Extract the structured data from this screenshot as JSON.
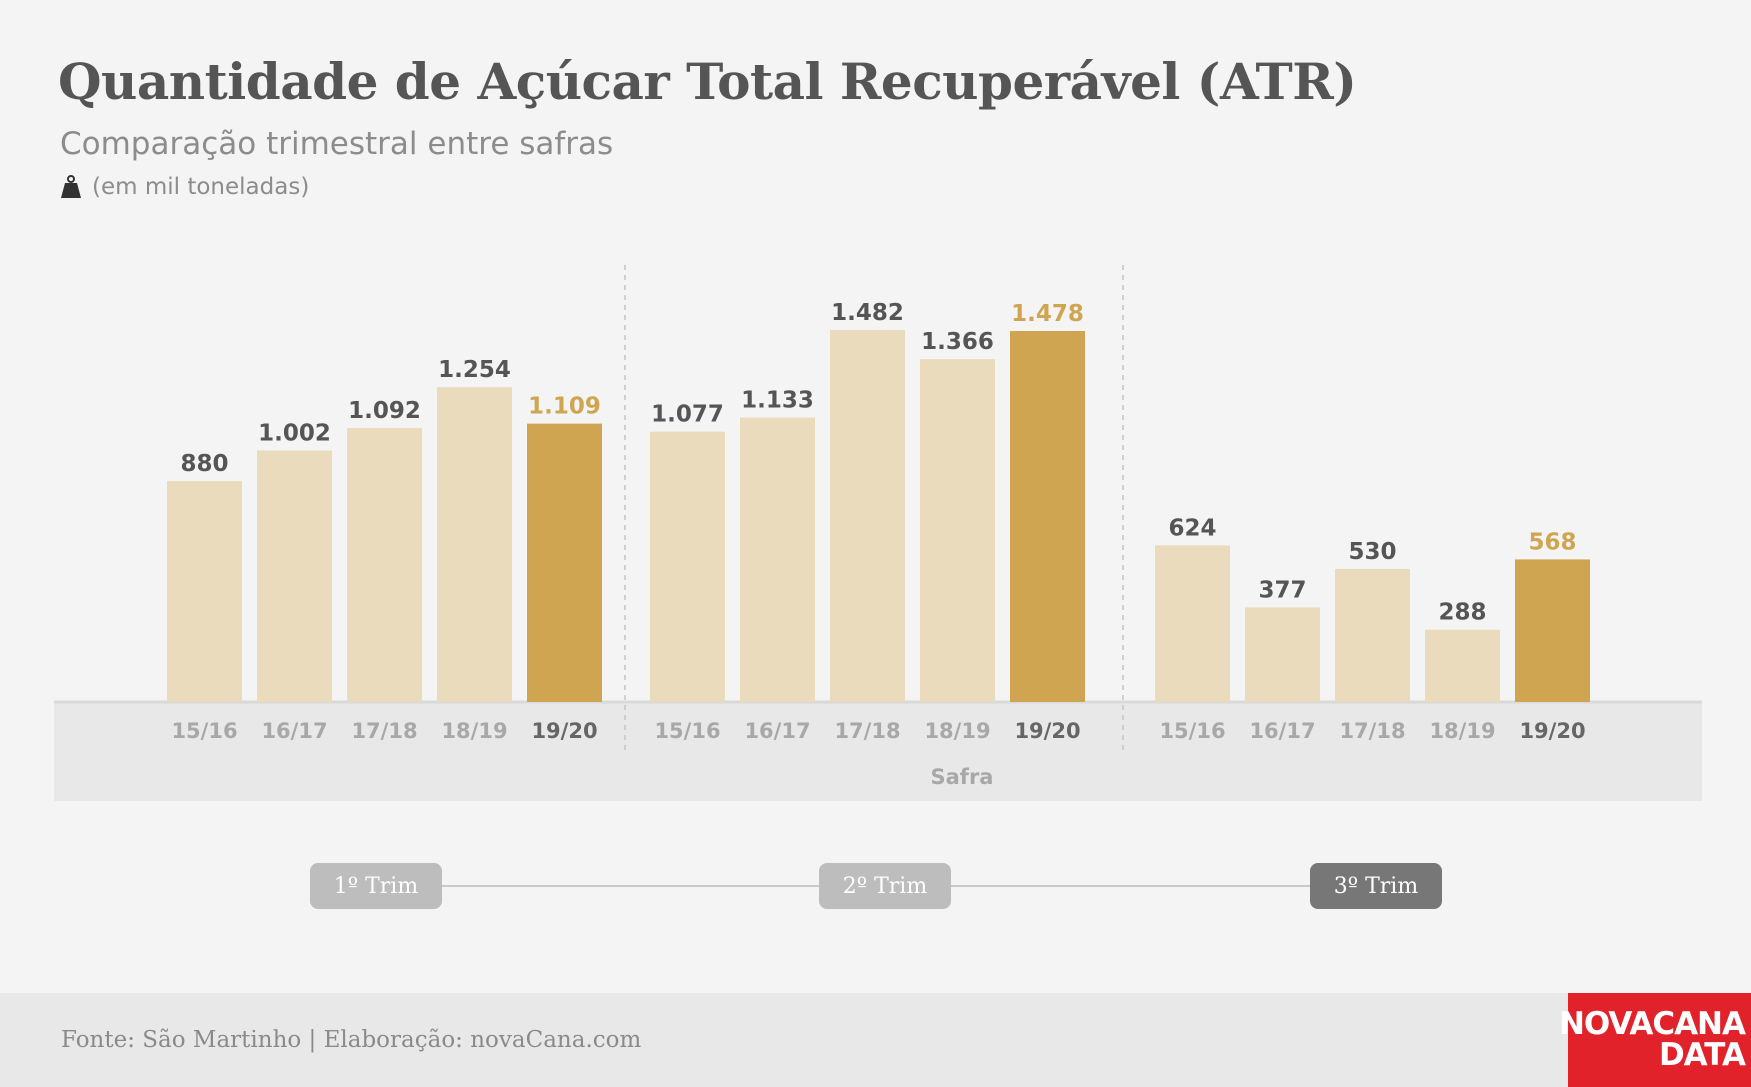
{
  "header": {
    "title": "Quantidade de Açúcar Total Recuperável (ATR)",
    "subtitle": "Comparação trimestral entre safras",
    "unit": "(em mil toneladas)",
    "unit_icon": "weight-icon"
  },
  "colors": {
    "bar_light": "#ebdbbd",
    "bar_highlight": "#cfa552",
    "label_dark": "#555555",
    "label_highlight": "#cfa552",
    "tick_light": "#a8a8a8",
    "tick_highlight": "#666666",
    "trim_inactive": "#bdbdbd",
    "trim_active": "#777777",
    "logo_red": "#e2222a"
  },
  "chart_data": {
    "type": "bar",
    "xlabel": "Safra",
    "ylabel": "",
    "ylim": [
      0,
      1482
    ],
    "grid": false,
    "groups": [
      {
        "categories": [
          "15/16",
          "16/17",
          "17/18",
          "18/19",
          "19/20"
        ],
        "values": [
          880,
          1002,
          1092,
          1254,
          1109
        ],
        "labels": [
          "880",
          "1.002",
          "1.092",
          "1.254",
          "1.109"
        ]
      },
      {
        "categories": [
          "15/16",
          "16/17",
          "17/18",
          "18/19",
          "19/20"
        ],
        "values": [
          1077,
          1133,
          1482,
          1366,
          1478
        ],
        "labels": [
          "1.077",
          "1.133",
          "1.482",
          "1.366",
          "1.478"
        ]
      },
      {
        "categories": [
          "15/16",
          "16/17",
          "17/18",
          "18/19",
          "19/20"
        ],
        "values": [
          624,
          377,
          530,
          288,
          568
        ],
        "labels": [
          "624",
          "377",
          "530",
          "288",
          "568"
        ]
      }
    ],
    "highlight_category": "19/20"
  },
  "trim_nav": {
    "items": [
      {
        "label": "1º Trim",
        "active": false
      },
      {
        "label": "2º Trim",
        "active": false
      },
      {
        "label": "3º Trim",
        "active": true
      }
    ]
  },
  "footer": {
    "source": "Fonte: São Martinho | Elaboração: novaCana.com",
    "logo_line1": "NOVACANA",
    "logo_line2": "DATA"
  }
}
